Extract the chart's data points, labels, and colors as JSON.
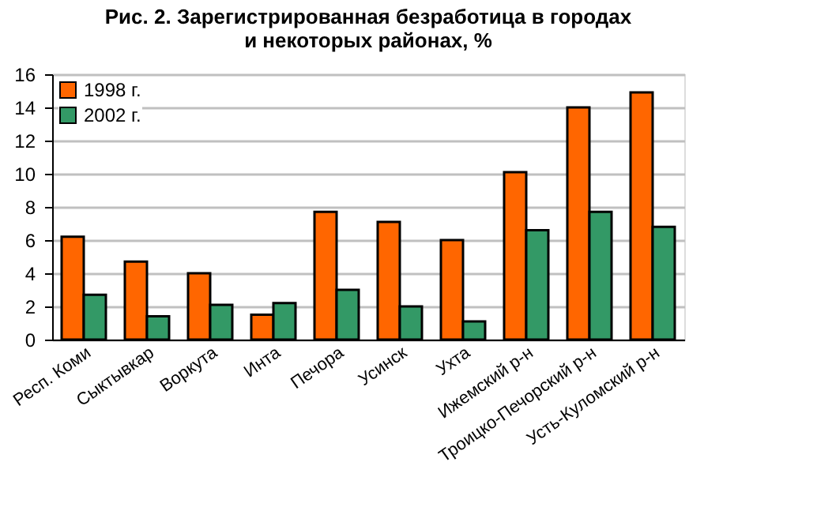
{
  "chart_data": {
    "type": "bar",
    "title": [
      "Рис. 2. Зарегистрированная безработица в городах",
      "и некоторых районах, %"
    ],
    "categories": [
      "Респ. Коми",
      "Сыктывкар",
      "Воркута",
      "Инта",
      "Печора",
      "Усинск",
      "Ухта",
      "Ижемский р-н",
      "Троицко-Печорский р-н",
      "Усть-Куломский р-н"
    ],
    "series": [
      {
        "name": "1998 г.",
        "color": "#ff6600",
        "values": [
          6.2,
          4.7,
          4.0,
          1.5,
          7.7,
          7.1,
          6.0,
          10.1,
          14.0,
          14.9
        ]
      },
      {
        "name": "2002 г.",
        "color": "#339966",
        "values": [
          2.7,
          1.4,
          2.1,
          2.2,
          3.0,
          2.0,
          1.1,
          6.6,
          7.7,
          6.8
        ]
      }
    ],
    "ylim": [
      0,
      16
    ],
    "yticks": [
      0,
      2,
      4,
      6,
      8,
      10,
      12,
      14,
      16
    ],
    "grid": "y",
    "legend": "top left"
  }
}
